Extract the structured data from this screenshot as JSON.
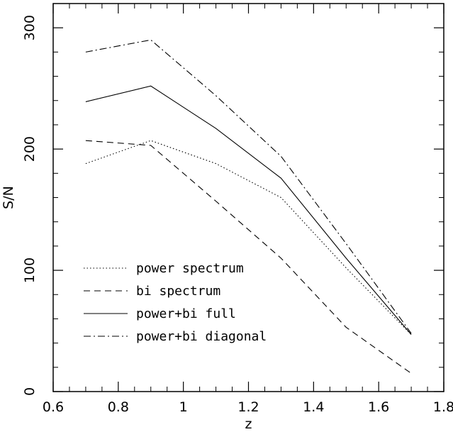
{
  "chart_data": {
    "type": "line",
    "xlabel": "z",
    "ylabel": "S/N",
    "xlim": [
      0.6,
      1.8
    ],
    "ylim": [
      0,
      320
    ],
    "xticks": [
      0.6,
      0.8,
      1,
      1.2,
      1.4,
      1.6,
      1.8
    ],
    "xtick_labels": [
      "0.6",
      "0.8",
      "1",
      "1.2",
      "1.4",
      "1.6",
      "1.8"
    ],
    "yticks": [
      0,
      100,
      200,
      300
    ],
    "ytick_labels": [
      "0",
      "100",
      "200",
      "300"
    ],
    "legend_position": "bottom-left",
    "grid": false,
    "series": [
      {
        "name": "power spectrum",
        "dash": "dotted",
        "x": [
          0.7,
          0.9,
          1.1,
          1.3,
          1.5,
          1.7
        ],
        "y": [
          188,
          207,
          188,
          160,
          102,
          47
        ]
      },
      {
        "name": "bi spectrum",
        "dash": "dashed",
        "x": [
          0.7,
          0.9,
          1.1,
          1.3,
          1.5,
          1.7
        ],
        "y": [
          207,
          203,
          157,
          110,
          53,
          15
        ]
      },
      {
        "name": "power+bi full",
        "dash": "solid",
        "x": [
          0.7,
          0.9,
          1.1,
          1.3,
          1.5,
          1.7
        ],
        "y": [
          239,
          252,
          217,
          176,
          110,
          47
        ]
      },
      {
        "name": "power+bi diagonal",
        "dash": "dashdot",
        "x": [
          0.7,
          0.9,
          1.1,
          1.3,
          1.5,
          1.7
        ],
        "y": [
          280,
          290,
          244,
          194,
          122,
          48
        ]
      }
    ]
  }
}
